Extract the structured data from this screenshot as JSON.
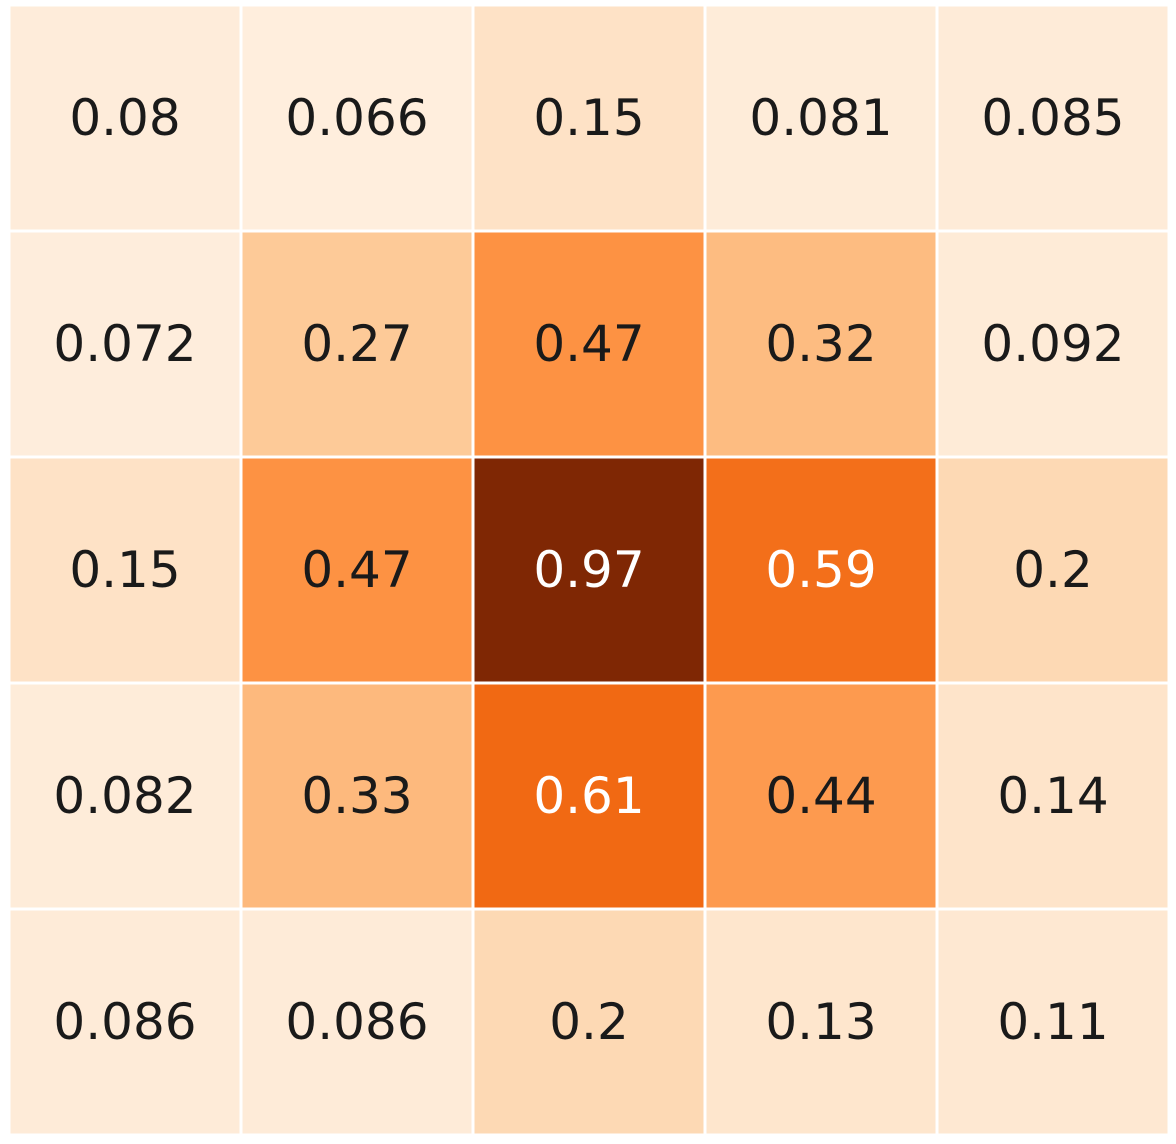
{
  "chart_data": {
    "type": "heatmap",
    "rows": 5,
    "cols": 5,
    "values": [
      [
        0.08,
        0.066,
        0.15,
        0.081,
        0.085
      ],
      [
        0.072,
        0.27,
        0.47,
        0.32,
        0.092
      ],
      [
        0.15,
        0.47,
        0.97,
        0.59,
        0.2
      ],
      [
        0.082,
        0.33,
        0.61,
        0.44,
        0.14
      ],
      [
        0.086,
        0.086,
        0.2,
        0.13,
        0.11
      ]
    ],
    "labels": [
      [
        "0.08",
        "0.066",
        "0.15",
        "0.081",
        "0.085"
      ],
      [
        "0.072",
        "0.27",
        "0.47",
        "0.32",
        "0.092"
      ],
      [
        "0.15",
        "0.47",
        "0.97",
        "0.59",
        "0.2"
      ],
      [
        "0.082",
        "0.33",
        "0.61",
        "0.44",
        "0.14"
      ],
      [
        "0.086",
        "0.086",
        "0.2",
        "0.13",
        "0.11"
      ]
    ],
    "colormap": "Oranges",
    "cell_border_color": "#ffffff",
    "text_color_dark": "#1a1a1a",
    "text_color_light": "#ffffff",
    "xlabel": "",
    "ylabel": "",
    "title": "",
    "grid": false,
    "legend": "none"
  }
}
